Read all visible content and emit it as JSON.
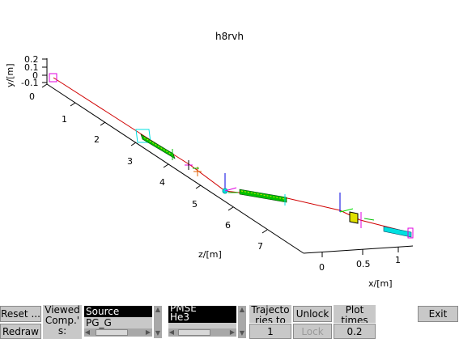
{
  "plot": {
    "title": "h8rvh",
    "axis_y_label": "y/[m]",
    "axis_z_label": "z/[m]",
    "axis_x_label": "x/[m]",
    "y_ticks": [
      "0.2",
      "0.1",
      "0",
      "-0.1"
    ],
    "z_ticks": [
      "0",
      "1",
      "2",
      "3",
      "4",
      "5",
      "6",
      "7"
    ],
    "x_ticks": [
      "0",
      "0.5",
      "1"
    ],
    "colors": {
      "beam": "#d00000",
      "guide": "#00c000",
      "monitor": "#00e0e0",
      "source": "#e000e0",
      "slit": "#e0e000",
      "axis": "#000000"
    }
  },
  "controls": {
    "reset_label": "Reset ...",
    "redraw_label": "Redraw",
    "viewed_label_1": "Viewed",
    "viewed_label_2": "Comp.'",
    "viewed_label_3": "s:",
    "components_list": [
      "Source",
      "PG_G"
    ],
    "particle_list_top": "PMSE",
    "particle_selected": "He3",
    "trajectories_label_1": "Trajecto",
    "trajectories_label_2": "ries to",
    "trajectories_value": "1",
    "unlock_label": "Unlock",
    "lock_label": "Lock",
    "plot_times_label_1": "Plot",
    "plot_times_label_2": "times",
    "plot_times_value": "0.2",
    "exit_label": "Exit"
  }
}
